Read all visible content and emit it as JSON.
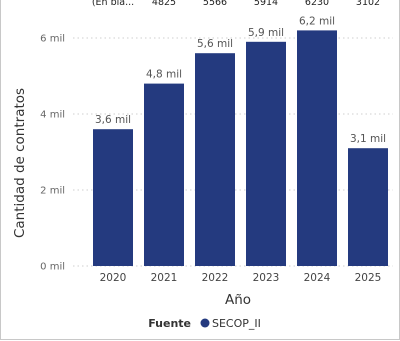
{
  "chart_data": {
    "type": "bar",
    "categories": [
      "2020",
      "2021",
      "2022",
      "2023",
      "2024",
      "2025"
    ],
    "values": [
      3.6,
      4.8,
      5.6,
      5.9,
      6.2,
      3.1
    ],
    "data_labels": [
      "3,6 mil",
      "4,8 mil",
      "5,6 mil",
      "5,9 mil",
      "6,2 mil",
      "3,1 mil"
    ],
    "header_row": [
      "(En bla...",
      "4825",
      "5566",
      "5914",
      "6230",
      "3102"
    ],
    "xlabel": "Año",
    "ylabel": "Cantidad de contratos",
    "yticks": [
      {
        "value": 0,
        "label": "0 mil"
      },
      {
        "value": 2,
        "label": "2 mil"
      },
      {
        "value": 4,
        "label": "4 mil"
      },
      {
        "value": 6,
        "label": "6 mil"
      }
    ],
    "ylim": [
      0,
      6.5
    ],
    "grid": true,
    "legend": {
      "title": "Fuente",
      "items": [
        {
          "name": "SECOP_II",
          "color": "#243a7f"
        }
      ],
      "position": "bottom"
    },
    "bar_color": "#243a7f"
  }
}
